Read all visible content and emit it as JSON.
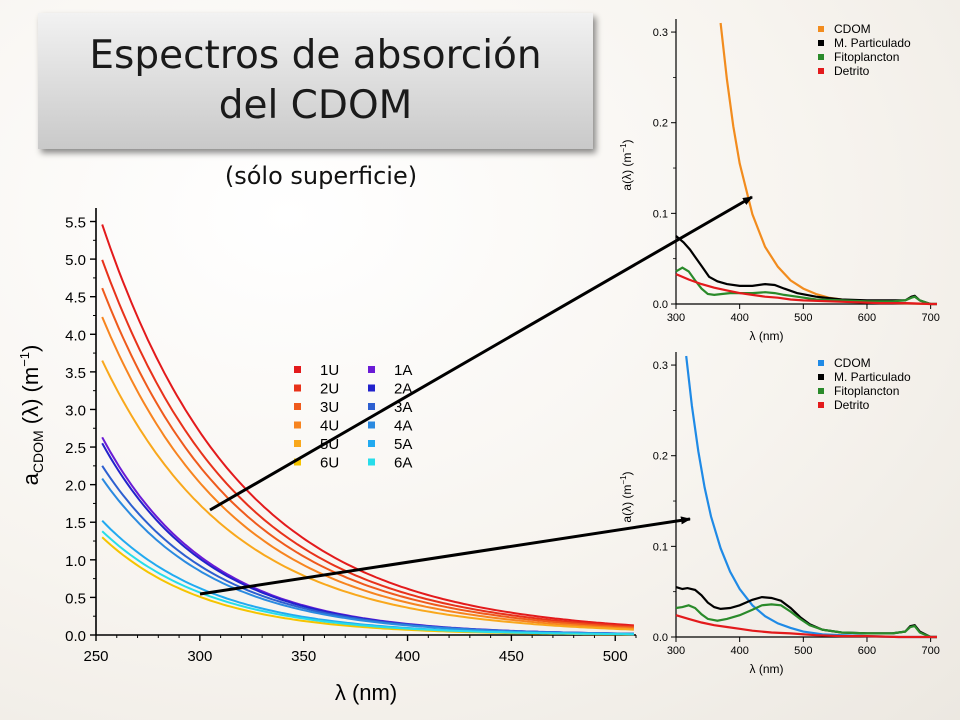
{
  "header": {
    "title_line1": "Espectros de absorción",
    "title_line2": "del CDOM",
    "subtitle": "(sólo superficie)"
  },
  "chart_data": [
    {
      "type": "line",
      "xlabel": "λ (nm)",
      "ylabel_main": "a",
      "ylabel_sub": "CDOM",
      "ylabel_tail": "(λ) (m",
      "ylabel_exp": "−1",
      "ylabel_close": ")",
      "xlim": [
        250,
        510
      ],
      "ylim": [
        0,
        5.6
      ],
      "xticks": [
        250,
        300,
        350,
        400,
        450,
        500
      ],
      "yticks": [
        "0.0",
        "0.5",
        "1.0",
        "1.5",
        "2.0",
        "2.5",
        "3.0",
        "3.5",
        "4.0",
        "4.5",
        "5.0",
        "5.5"
      ],
      "x_end": 510,
      "series": [
        {
          "name": "1U",
          "color": "#e31a1c",
          "a0": 5.42,
          "s": 0.0151,
          "base": 0.04
        },
        {
          "name": "2U",
          "color": "#e8321a",
          "a0": 4.95,
          "s": 0.0153,
          "base": 0.04
        },
        {
          "name": "3U",
          "color": "#ef5a1c",
          "a0": 4.58,
          "s": 0.0155,
          "base": 0.035
        },
        {
          "name": "4U",
          "color": "#f7841f",
          "a0": 4.2,
          "s": 0.0158,
          "base": 0.03
        },
        {
          "name": "5U",
          "color": "#f9a81c",
          "a0": 3.62,
          "s": 0.016,
          "base": 0.03
        },
        {
          "name": "6U",
          "color": "#f5c400",
          "a0": 1.3,
          "s": 0.02,
          "base": 0.0
        },
        {
          "name": "1A",
          "color": "#6a1bd6",
          "a0": 2.63,
          "s": 0.0196,
          "base": 0.0
        },
        {
          "name": "2A",
          "color": "#2222cc",
          "a0": 2.55,
          "s": 0.0196,
          "base": 0.0
        },
        {
          "name": "3A",
          "color": "#2d5fd0",
          "a0": 2.25,
          "s": 0.019,
          "base": 0.0
        },
        {
          "name": "4A",
          "color": "#2b8ae0",
          "a0": 2.08,
          "s": 0.019,
          "base": 0.0
        },
        {
          "name": "5A",
          "color": "#22aaf0",
          "a0": 1.52,
          "s": 0.019,
          "base": 0.0
        },
        {
          "name": "6A",
          "color": "#27ddea",
          "a0": 1.38,
          "s": 0.019,
          "base": 0.0
        }
      ]
    },
    {
      "type": "line",
      "ylabel": "a(λ) (m",
      "ylabel_exp": "−1",
      "ylabel_close": ")",
      "xlabel": "λ (nm)",
      "xlim": [
        300,
        710
      ],
      "ylim": [
        0,
        0.31
      ],
      "xticks": [
        300,
        400,
        500,
        600,
        700
      ],
      "yticks": [
        "0.0",
        "0.1",
        "0.2",
        "0.3"
      ],
      "series": [
        {
          "name": "CDOM",
          "color": "#f28c1e",
          "points": [
            [
              370,
              0.31
            ],
            [
              380,
              0.248
            ],
            [
              390,
              0.196
            ],
            [
              400,
              0.155
            ],
            [
              420,
              0.099
            ],
            [
              440,
              0.063
            ],
            [
              460,
              0.041
            ],
            [
              480,
              0.026
            ],
            [
              500,
              0.017
            ],
            [
              520,
              0.011
            ],
            [
              540,
              0.007
            ],
            [
              560,
              0.005
            ],
            [
              580,
              0.003
            ],
            [
              600,
              0.002
            ],
            [
              650,
              0.001
            ],
            [
              700,
              0.0
            ]
          ]
        },
        {
          "name": "M. Particulado",
          "color": "#000000",
          "points": [
            [
              300,
              0.075
            ],
            [
              312,
              0.068
            ],
            [
              322,
              0.06
            ],
            [
              330,
              0.052
            ],
            [
              340,
              0.042
            ],
            [
              352,
              0.03
            ],
            [
              365,
              0.025
            ],
            [
              380,
              0.022
            ],
            [
              400,
              0.02
            ],
            [
              420,
              0.02
            ],
            [
              440,
              0.022
            ],
            [
              455,
              0.021
            ],
            [
              470,
              0.017
            ],
            [
              490,
              0.012
            ],
            [
              520,
              0.008
            ],
            [
              560,
              0.005
            ],
            [
              600,
              0.004
            ],
            [
              640,
              0.004
            ],
            [
              660,
              0.004
            ],
            [
              670,
              0.008
            ],
            [
              675,
              0.009
            ],
            [
              683,
              0.004
            ],
            [
              700,
              0.0
            ],
            [
              710,
              0.0
            ]
          ]
        },
        {
          "name": "Fitoplancton",
          "color": "#2a8a2a",
          "points": [
            [
              300,
              0.036
            ],
            [
              310,
              0.04
            ],
            [
              320,
              0.036
            ],
            [
              330,
              0.026
            ],
            [
              340,
              0.017
            ],
            [
              350,
              0.011
            ],
            [
              360,
              0.01
            ],
            [
              372,
              0.011
            ],
            [
              385,
              0.012
            ],
            [
              400,
              0.012
            ],
            [
              420,
              0.012
            ],
            [
              440,
              0.013
            ],
            [
              455,
              0.012
            ],
            [
              470,
              0.01
            ],
            [
              490,
              0.008
            ],
            [
              520,
              0.005
            ],
            [
              560,
              0.004
            ],
            [
              600,
              0.003
            ],
            [
              640,
              0.003
            ],
            [
              660,
              0.004
            ],
            [
              670,
              0.007
            ],
            [
              675,
              0.008
            ],
            [
              683,
              0.004
            ],
            [
              700,
              0.0
            ],
            [
              710,
              0.0
            ]
          ]
        },
        {
          "name": "Detrito",
          "color": "#e31a1c",
          "points": [
            [
              300,
              0.033
            ],
            [
              320,
              0.027
            ],
            [
              340,
              0.022
            ],
            [
              360,
              0.018
            ],
            [
              380,
              0.015
            ],
            [
              400,
              0.012
            ],
            [
              420,
              0.01
            ],
            [
              440,
              0.008
            ],
            [
              460,
              0.007
            ],
            [
              480,
              0.005
            ],
            [
              500,
              0.004
            ],
            [
              540,
              0.003
            ],
            [
              580,
              0.002
            ],
            [
              620,
              0.001
            ],
            [
              660,
              0.001
            ],
            [
              700,
              0.0
            ],
            [
              710,
              0.0
            ]
          ]
        }
      ]
    },
    {
      "type": "line",
      "ylabel": "a(λ) (m",
      "ylabel_exp": "−1",
      "ylabel_close": ")",
      "xlabel": "λ (nm)",
      "xlim": [
        300,
        710
      ],
      "ylim": [
        0,
        0.31
      ],
      "xticks": [
        300,
        400,
        500,
        600,
        700
      ],
      "yticks": [
        "0.0",
        "0.1",
        "0.2",
        "0.3"
      ],
      "series": [
        {
          "name": "CDOM",
          "color": "#1f8ae6",
          "points": [
            [
              316,
              0.31
            ],
            [
              325,
              0.255
            ],
            [
              335,
              0.205
            ],
            [
              345,
              0.165
            ],
            [
              355,
              0.133
            ],
            [
              370,
              0.098
            ],
            [
              385,
              0.072
            ],
            [
              400,
              0.053
            ],
            [
              420,
              0.035
            ],
            [
              440,
              0.023
            ],
            [
              460,
              0.015
            ],
            [
              480,
              0.01
            ],
            [
              500,
              0.006
            ],
            [
              530,
              0.003
            ],
            [
              560,
              0.002
            ],
            [
              600,
              0.001
            ],
            [
              650,
              0.0
            ],
            [
              710,
              0.0
            ]
          ]
        },
        {
          "name": "M. Particulado",
          "color": "#000000",
          "points": [
            [
              300,
              0.055
            ],
            [
              310,
              0.053
            ],
            [
              318,
              0.054
            ],
            [
              330,
              0.052
            ],
            [
              340,
              0.046
            ],
            [
              350,
              0.038
            ],
            [
              360,
              0.033
            ],
            [
              370,
              0.031
            ],
            [
              385,
              0.032
            ],
            [
              400,
              0.035
            ],
            [
              420,
              0.041
            ],
            [
              435,
              0.044
            ],
            [
              450,
              0.043
            ],
            [
              465,
              0.04
            ],
            [
              480,
              0.032
            ],
            [
              495,
              0.022
            ],
            [
              510,
              0.014
            ],
            [
              530,
              0.008
            ],
            [
              560,
              0.005
            ],
            [
              600,
              0.004
            ],
            [
              640,
              0.004
            ],
            [
              660,
              0.006
            ],
            [
              668,
              0.012
            ],
            [
              675,
              0.013
            ],
            [
              683,
              0.006
            ],
            [
              700,
              0.0
            ],
            [
              710,
              0.0
            ]
          ]
        },
        {
          "name": "Fitoplancton",
          "color": "#2a8a2a",
          "points": [
            [
              300,
              0.032
            ],
            [
              310,
              0.033
            ],
            [
              320,
              0.035
            ],
            [
              330,
              0.032
            ],
            [
              340,
              0.025
            ],
            [
              350,
              0.02
            ],
            [
              365,
              0.018
            ],
            [
              380,
              0.02
            ],
            [
              400,
              0.024
            ],
            [
              420,
              0.03
            ],
            [
              435,
              0.035
            ],
            [
              450,
              0.036
            ],
            [
              465,
              0.035
            ],
            [
              480,
              0.028
            ],
            [
              495,
              0.02
            ],
            [
              510,
              0.013
            ],
            [
              530,
              0.008
            ],
            [
              560,
              0.005
            ],
            [
              600,
              0.004
            ],
            [
              640,
              0.004
            ],
            [
              660,
              0.006
            ],
            [
              668,
              0.011
            ],
            [
              675,
              0.012
            ],
            [
              683,
              0.005
            ],
            [
              700,
              0.0
            ],
            [
              710,
              0.0
            ]
          ]
        },
        {
          "name": "Detrito",
          "color": "#e31a1c",
          "points": [
            [
              300,
              0.024
            ],
            [
              320,
              0.02
            ],
            [
              340,
              0.016
            ],
            [
              360,
              0.013
            ],
            [
              380,
              0.011
            ],
            [
              400,
              0.009
            ],
            [
              420,
              0.007
            ],
            [
              450,
              0.005
            ],
            [
              480,
              0.004
            ],
            [
              520,
              0.002
            ],
            [
              560,
              0.001
            ],
            [
              600,
              0.001
            ],
            [
              650,
              0.0
            ],
            [
              710,
              0.0
            ]
          ]
        }
      ]
    }
  ]
}
